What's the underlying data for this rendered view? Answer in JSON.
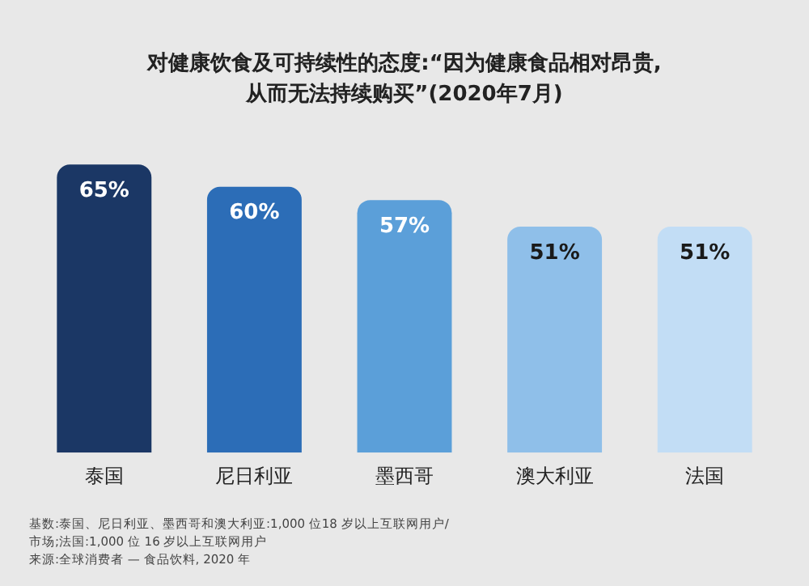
{
  "chart_data": {
    "type": "bar",
    "title": "对健康饮食及可持续性的态度:“因为健康食品相对昂贵,\n从而无法持续购买”(2020年7月)",
    "categories": [
      "泰国",
      "尼日利亚",
      "墨西哥",
      "澳大利亚",
      "法国"
    ],
    "values": [
      65,
      60,
      57,
      51,
      51
    ],
    "colors": [
      "#1b3765",
      "#2c6db7",
      "#5b9fd9",
      "#8fbfe9",
      "#c2ddf5"
    ],
    "value_labels": [
      "65%",
      "60%",
      "57%",
      "51%",
      "51%"
    ],
    "tick_labels": "x",
    "grid": false,
    "legend": false,
    "annotations": [
      "基数:泰国、尼日利亚、墨西哥和澳大利亚:1,000 位18 岁以上互联网用户/\n市场;法国:1,000 位 16 岁以上互联网用户",
      "来源:全球消费者 — 食品饮料, 2020 年"
    ]
  }
}
